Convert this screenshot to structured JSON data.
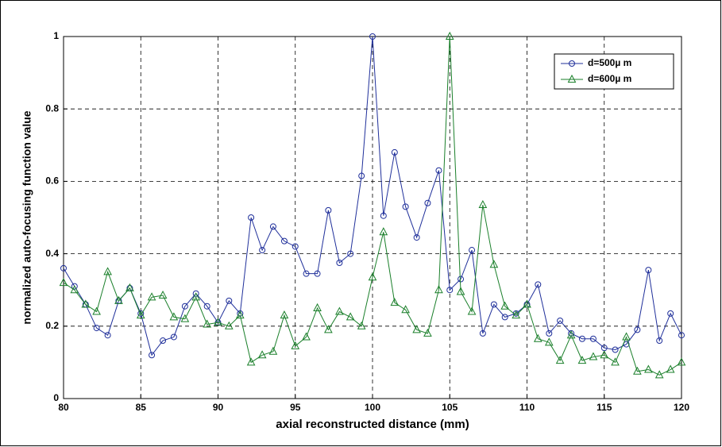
{
  "chart_data": {
    "type": "line",
    "xlabel": "axial reconstructed distance (mm)",
    "ylabel": "normalized auto-focusing function value",
    "x": [
      80,
      80.71,
      81.43,
      82.14,
      82.86,
      83.57,
      84.29,
      85,
      85.71,
      86.43,
      87.14,
      87.86,
      88.57,
      89.29,
      90,
      90.71,
      91.43,
      92.14,
      92.86,
      93.57,
      94.29,
      95,
      95.71,
      96.43,
      97.14,
      97.86,
      98.57,
      99.29,
      100,
      100.71,
      101.43,
      102.14,
      102.86,
      103.57,
      104.29,
      105,
      105.71,
      106.43,
      107.14,
      107.86,
      108.57,
      109.29,
      110,
      110.71,
      111.43,
      112.14,
      112.86,
      113.57,
      114.29,
      115,
      115.71,
      116.43,
      117.14,
      117.86,
      118.57,
      119.29,
      120
    ],
    "series": [
      {
        "name": "d=500µ m",
        "color": "#1f2f9a",
        "marker": "circle",
        "values": [
          0.36,
          0.31,
          0.26,
          0.195,
          0.175,
          0.27,
          0.305,
          0.235,
          0.12,
          0.16,
          0.17,
          0.255,
          0.29,
          0.255,
          0.21,
          0.27,
          0.235,
          0.5,
          0.41,
          0.475,
          0.435,
          0.42,
          0.345,
          0.345,
          0.52,
          0.375,
          0.4,
          0.615,
          1.0,
          0.505,
          0.68,
          0.53,
          0.445,
          0.54,
          0.63,
          0.3,
          0.33,
          0.41,
          0.18,
          0.26,
          0.225,
          0.235,
          0.26,
          0.315,
          0.18,
          0.215,
          0.18,
          0.165,
          0.165,
          0.14,
          0.135,
          0.15,
          0.19,
          0.355,
          0.16,
          0.235,
          0.175
        ]
      },
      {
        "name": "d=600µ m",
        "color": "#1a7f2a",
        "marker": "triangle",
        "values": [
          0.32,
          0.3,
          0.26,
          0.24,
          0.35,
          0.27,
          0.305,
          0.23,
          0.28,
          0.285,
          0.225,
          0.22,
          0.28,
          0.205,
          0.21,
          0.2,
          0.23,
          0.1,
          0.12,
          0.13,
          0.23,
          0.145,
          0.17,
          0.25,
          0.19,
          0.24,
          0.225,
          0.2,
          0.335,
          0.46,
          0.265,
          0.245,
          0.19,
          0.18,
          0.3,
          1.0,
          0.295,
          0.24,
          0.535,
          0.37,
          0.255,
          0.23,
          0.26,
          0.165,
          0.155,
          0.105,
          0.175,
          0.105,
          0.115,
          0.12,
          0.1,
          0.17,
          0.075,
          0.08,
          0.065,
          0.08,
          0.1
        ]
      }
    ],
    "xlim": [
      80,
      120
    ],
    "xticks": [
      80,
      85,
      90,
      95,
      100,
      105,
      110,
      115,
      120
    ],
    "ylim": [
      0,
      1
    ],
    "yticks": [
      0,
      0.2,
      0.4,
      0.6,
      0.8,
      1
    ],
    "grid": true,
    "legend": "top-right"
  }
}
